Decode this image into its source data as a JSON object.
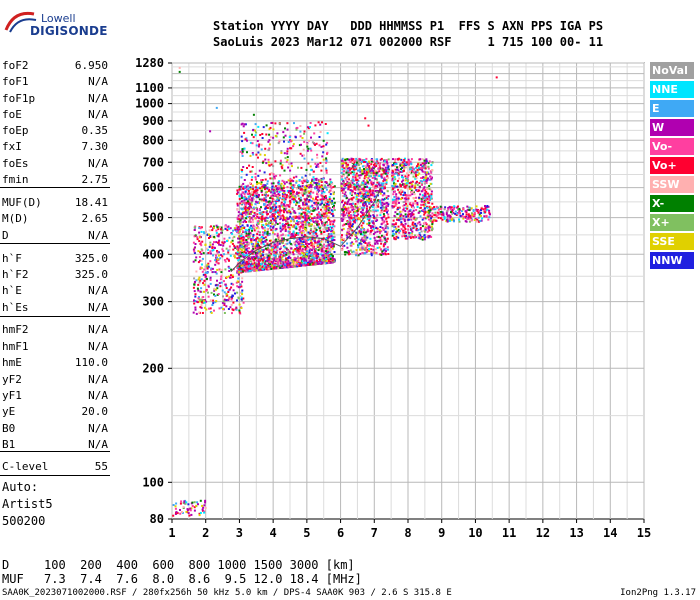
{
  "logo": {
    "top": "Lowell",
    "bottom": "DIGISONDE"
  },
  "header": {
    "line1": "Station YYYY DAY   DDD HHMMSS P1  FFS S AXN PPS IGA PS",
    "line2": "SaoLuis 2023 Mar12 071 002000 RSF     1 715 100 00- 11"
  },
  "params": [
    {
      "label": "foF2",
      "value": "6.950"
    },
    {
      "label": "foF1",
      "value": "N/A"
    },
    {
      "label": "foF1p",
      "value": "N/A"
    },
    {
      "label": "foE",
      "value": "N/A"
    },
    {
      "label": "foEp",
      "value": "0.35"
    },
    {
      "label": "fxI",
      "value": "7.30"
    },
    {
      "label": "foEs",
      "value": "N/A"
    },
    {
      "label": "fmin",
      "value": "2.75"
    },
    {
      "label": "MUF(D)",
      "value": "18.41"
    },
    {
      "label": "M(D)",
      "value": "2.65"
    },
    {
      "label": "D",
      "value": "N/A"
    },
    {
      "label": "h`F",
      "value": "325.0"
    },
    {
      "label": "h`F2",
      "value": "325.0"
    },
    {
      "label": "h`E",
      "value": "N/A"
    },
    {
      "label": "h`Es",
      "value": "N/A"
    },
    {
      "label": "hmF2",
      "value": "N/A"
    },
    {
      "label": "hmF1",
      "value": "N/A"
    },
    {
      "label": "hmE",
      "value": "110.0"
    },
    {
      "label": "yF2",
      "value": "N/A"
    },
    {
      "label": "yF1",
      "value": "N/A"
    },
    {
      "label": "yE",
      "value": "20.0"
    },
    {
      "label": "B0",
      "value": "N/A"
    },
    {
      "label": "B1",
      "value": "N/A"
    },
    {
      "label": "C-level",
      "value": "55"
    }
  ],
  "auto": {
    "line1": "Auto:",
    "line2": "Artist5",
    "line3": "500200"
  },
  "legend": [
    {
      "label": "NoVal",
      "color": "#a0a0a0"
    },
    {
      "label": "NNE",
      "color": "#00e5ff"
    },
    {
      "label": "E",
      "color": "#3fa9f5"
    },
    {
      "label": "W",
      "color": "#b000b0"
    },
    {
      "label": "Vo-",
      "color": "#ff3fa0"
    },
    {
      "label": "Vo+",
      "color": "#ff0030"
    },
    {
      "label": "SSW",
      "color": "#ffb0b0"
    },
    {
      "label": "X-",
      "color": "#008000"
    },
    {
      "label": "X+",
      "color": "#80c060"
    },
    {
      "label": "SSE",
      "color": "#e0d000"
    },
    {
      "label": "NNW",
      "color": "#2020e0"
    }
  ],
  "chart_data": {
    "type": "scatter",
    "title": "",
    "xlabel": "",
    "ylabel": "",
    "xlim": [
      1,
      15
    ],
    "ylim": [
      80,
      1280
    ],
    "y_scale": "log",
    "x_ticks": [
      "1",
      "2",
      "3",
      "4",
      "5",
      "6",
      "7",
      "8",
      "9",
      "10",
      "11",
      "12",
      "13",
      "14",
      "15"
    ],
    "y_ticks": [
      "80",
      "100",
      "200",
      "300",
      "400",
      "500",
      "600",
      "700",
      "800",
      "900",
      "1000",
      "1100",
      "1280"
    ],
    "grid": true,
    "legend_position": "right",
    "series_note": "",
    "trace_points": [
      [
        2.75,
        360
      ],
      [
        3.0,
        380
      ],
      [
        3.5,
        410
      ],
      [
        4.0,
        430
      ],
      [
        4.5,
        440
      ],
      [
        5.0,
        445
      ],
      [
        5.5,
        440
      ],
      [
        6.0,
        420
      ],
      [
        6.5,
        470
      ],
      [
        7.0,
        550
      ],
      [
        7.2,
        600
      ]
    ]
  },
  "muf_table": {
    "d_label": "D",
    "d_values": "100  200  400  600  800 1000 1500 3000 [km]",
    "muf_label": "MUF",
    "muf_values": "7.3  7.4  7.6  8.0  8.6  9.5 12.0 18.4 [MHz]"
  },
  "footer": {
    "left": "SAA0K_2023071002000.RSF / 280fx256h 50 kHz 5.0 km / DPS-4 SAA0K 903 / 2.6 S 315.8 E",
    "right": "Ion2Png 1.3.17"
  }
}
